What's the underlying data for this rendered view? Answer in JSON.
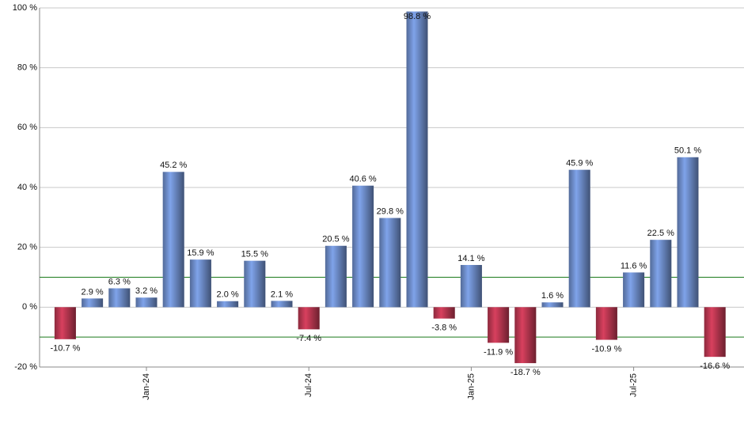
{
  "chart_data": {
    "type": "bar",
    "categories": [
      null,
      null,
      null,
      "Jan-24",
      null,
      null,
      null,
      null,
      null,
      "Jul-24",
      null,
      null,
      null,
      null,
      null,
      "Jan-25",
      null,
      null,
      null,
      null,
      null,
      "Jul-25",
      null,
      null,
      null
    ],
    "values": [
      -10.7,
      2.9,
      6.3,
      3.2,
      45.2,
      15.9,
      2.0,
      15.5,
      2.1,
      -7.4,
      20.5,
      40.6,
      29.8,
      98.8,
      -3.8,
      14.1,
      -11.9,
      -18.7,
      1.6,
      45.9,
      -10.9,
      11.6,
      22.5,
      50.1,
      -16.6
    ],
    "value_labels": [
      "-10.7 %",
      "2.9 %",
      "6.3 %",
      "3.2 %",
      "45.2 %",
      "15.9 %",
      "2.0 %",
      "15.5 %",
      "2.1 %",
      "-7.4 %",
      "20.5 %",
      "40.6 %",
      "29.8 %",
      "98.8 %",
      "-3.8 %",
      "14.1 %",
      "-11.9 %",
      "-18.7 %",
      "1.6 %",
      "45.9 %",
      "-10.9 %",
      "11.6 %",
      "22.5 %",
      "50.1 %",
      "-16.6 %"
    ],
    "color": "#7fa3ea",
    "negative_color": "#d8405e",
    "ylim": [
      -20,
      100
    ],
    "yticks": [
      {
        "value": -20,
        "label": "-20 %"
      },
      {
        "value": 0,
        "label": "0 %"
      },
      {
        "value": 20,
        "label": "20 %"
      },
      {
        "value": 40,
        "label": "40 %"
      },
      {
        "value": 60,
        "label": "60 %"
      },
      {
        "value": 80,
        "label": "80 %"
      },
      {
        "value": 100,
        "label": "100 %"
      }
    ],
    "reference_lines": [
      10,
      -10
    ],
    "reference_color": "#1a7a1a",
    "grid": true
  }
}
